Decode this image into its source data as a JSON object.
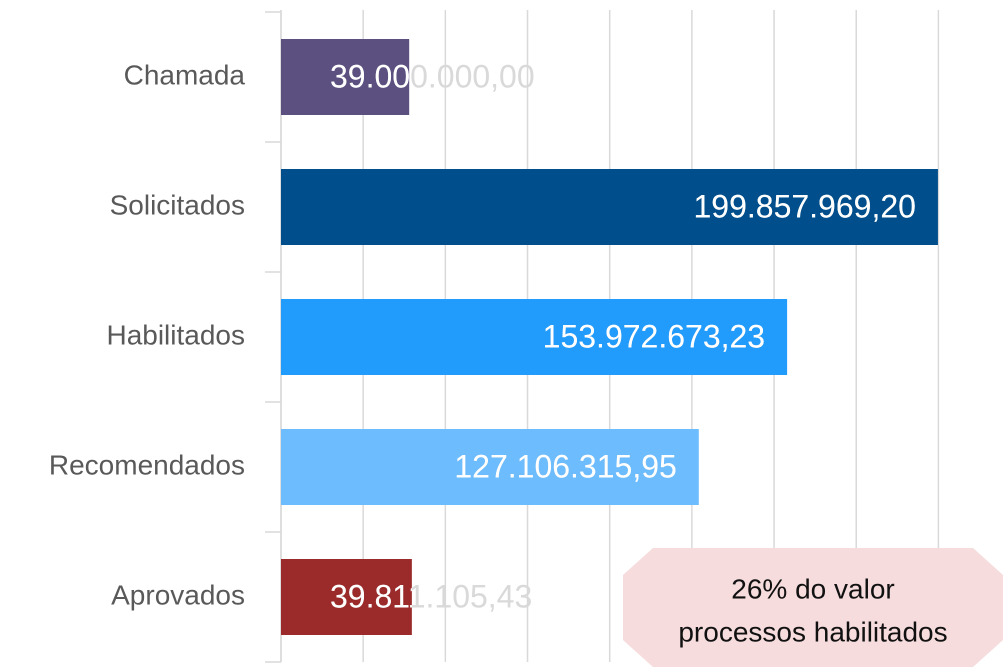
{
  "chart_data": {
    "type": "bar",
    "orientation": "horizontal",
    "categories": [
      "Chamada",
      "Solicitados",
      "Habilitados",
      "Recomendados",
      "Aprovados"
    ],
    "values": [
      39000000.0,
      199857969.2,
      153972673.23,
      127106315.95,
      39811105.43
    ],
    "value_labels": [
      "39.000.000,00",
      "199.857.969,20",
      "153.972.673,23",
      "127.106.315,95",
      "39.811.105,43"
    ],
    "colors": [
      "#5b5080",
      "#004f8c",
      "#219bfc",
      "#6dbcfd",
      "#9b2b2b"
    ],
    "xlim": [
      0,
      200000000
    ],
    "xticks": [
      0,
      25000000,
      50000000,
      75000000,
      100000000,
      125000000,
      150000000,
      175000000,
      200000000
    ],
    "grid": true,
    "annotation": [
      "26% do valor",
      "processos habilitados"
    ]
  }
}
